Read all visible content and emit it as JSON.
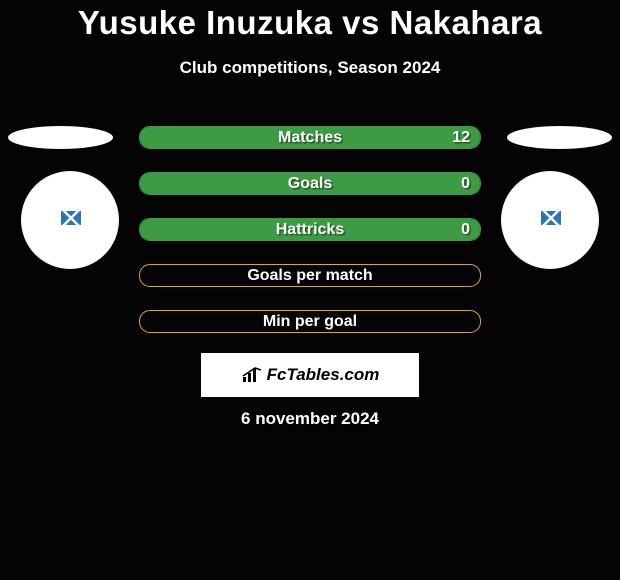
{
  "title": "Yusuke Inuzuka vs Nakahara",
  "subtitle": "Club competitions, Season 2024",
  "date": "6 november 2024",
  "logo_text": "FcTables.com",
  "background_color": "#040404",
  "text_color": "#ffffff",
  "stats": [
    {
      "label": "Matches",
      "value_right": "12",
      "fill_pct": 100,
      "fill_color": "#3d9b46",
      "border_color": "#3d9b46"
    },
    {
      "label": "Goals",
      "value_right": "0",
      "fill_pct": 100,
      "fill_color": "#3d9b46",
      "border_color": "#3d9b46"
    },
    {
      "label": "Hattricks",
      "value_right": "0",
      "fill_pct": 100,
      "fill_color": "#3d9b46",
      "border_color": "#3d9b46"
    },
    {
      "label": "Goals per match",
      "value_right": "",
      "fill_pct": 0,
      "fill_color": "#e6a32a",
      "border_color": "#e6a32a"
    },
    {
      "label": "Min per goal",
      "value_right": "",
      "fill_pct": 0,
      "fill_color": "#e6a32a",
      "border_color": "#e6a32a"
    }
  ],
  "player_left": {
    "placeholder_color": "#2975b8"
  },
  "player_right": {
    "placeholder_color": "#2975b8"
  }
}
